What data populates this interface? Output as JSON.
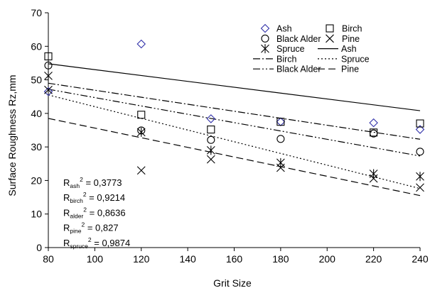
{
  "chart_data": {
    "type": "scatter",
    "xlabel": "Grit Size",
    "ylabel": "Surface Roughness Rz,mm",
    "xlim": [
      80,
      240
    ],
    "ylim": [
      0,
      70
    ],
    "x_ticks": [
      "80",
      "100",
      "120",
      "140",
      "160",
      "180",
      "200",
      "220",
      "240"
    ],
    "y_ticks": [
      "0",
      "10",
      "20",
      "30",
      "40",
      "50",
      "60",
      "70"
    ],
    "grid": false,
    "legend_position": "top-right",
    "series": [
      {
        "name": "Ash",
        "marker": "diamond",
        "color": "#3333aa",
        "x": [
          80,
          120,
          150,
          180,
          220,
          240
        ],
        "y": [
          46.5,
          60.7,
          38.4,
          37.5,
          37.2,
          35.2
        ]
      },
      {
        "name": "Birch",
        "marker": "square",
        "color": "#000000",
        "x": [
          80,
          120,
          150,
          180,
          220,
          240
        ],
        "y": [
          57,
          39.6,
          35.2,
          37.5,
          34.3,
          37
        ]
      },
      {
        "name": "Black Alder",
        "marker": "circle",
        "color": "#000000",
        "x": [
          80,
          120,
          150,
          180,
          220,
          240
        ],
        "y": [
          54.3,
          34.9,
          32.1,
          32.4,
          34,
          28.6
        ]
      },
      {
        "name": "Pine",
        "marker": "x",
        "color": "#000000",
        "x": [
          80,
          120,
          150,
          180,
          220,
          240
        ],
        "y": [
          47,
          23,
          26.3,
          23.8,
          20.6,
          17.9
        ]
      },
      {
        "name": "Spruce",
        "marker": "star",
        "color": "#000000",
        "x": [
          80,
          120,
          150,
          180,
          220,
          240
        ],
        "y": [
          51.2,
          34.4,
          29,
          25.3,
          22,
          21.2
        ]
      }
    ],
    "trendlines": [
      {
        "name": "Ash",
        "dash": "",
        "y_at_x80": 54.8,
        "y_at_x240": 40.8
      },
      {
        "name": "Birch",
        "dash": "10 3 2 3",
        "y_at_x80": 49,
        "y_at_x240": 32.3
      },
      {
        "name": "Spruce",
        "dash": "2 3",
        "y_at_x80": 45.5,
        "y_at_x240": 17.6
      },
      {
        "name": "Black Alder",
        "dash": "10 3 2 3 2 3",
        "y_at_x80": 47.2,
        "y_at_x240": 27.3
      },
      {
        "name": "Pine",
        "dash": "10 5",
        "y_at_x80": 38.5,
        "y_at_x240": 15.5
      }
    ],
    "annotations": [
      {
        "base": "R",
        "sub": "ash",
        "sup": "2",
        "rest": " = 0,3773"
      },
      {
        "base": "R",
        "sub": "birch",
        "sup": "2",
        "rest": " = 0,9214"
      },
      {
        "base": "R",
        "sub": "alder",
        "sup": "2",
        "rest": " = 0,8636"
      },
      {
        "base": "R",
        "sub": "pine",
        "sup": "2",
        "rest": " = 0,827"
      },
      {
        "base": "R",
        "sub": "spruce",
        "sup": "2",
        "rest": " = 0,9874"
      }
    ]
  }
}
